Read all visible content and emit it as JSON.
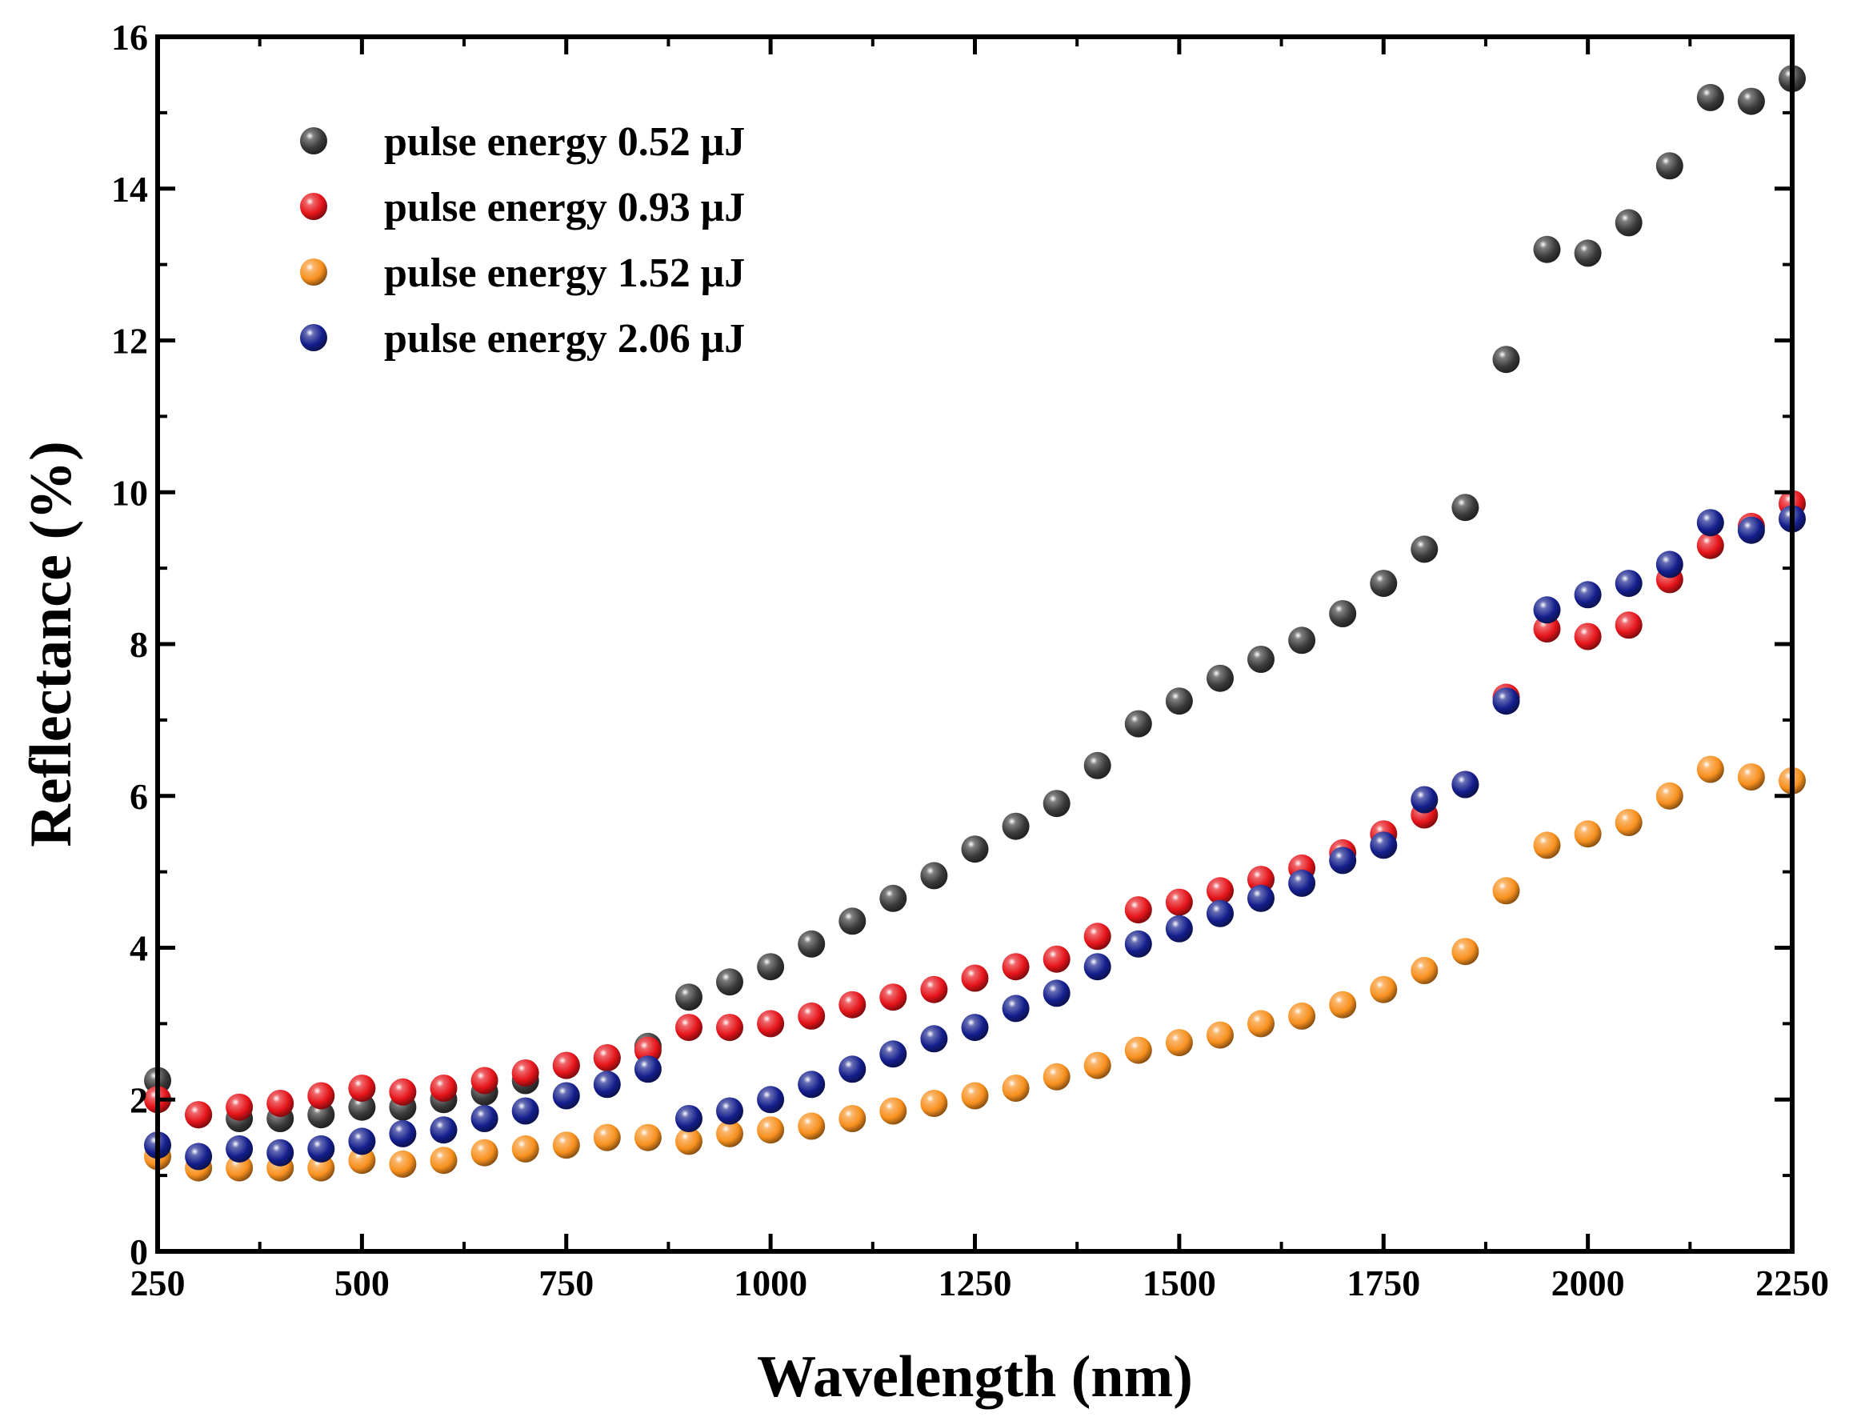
{
  "chart_data": {
    "type": "scatter",
    "title": "",
    "xlabel": "Wavelength (nm)",
    "ylabel": "Reflectance (%)",
    "xlim": [
      250,
      2250
    ],
    "ylim": [
      0,
      16
    ],
    "x_ticks": [
      250,
      500,
      750,
      1000,
      1250,
      1500,
      1750,
      2000,
      2250
    ],
    "y_ticks": [
      0,
      2,
      4,
      6,
      8,
      10,
      12,
      14,
      16
    ],
    "x_tick_labels": [
      "250",
      "500",
      "750",
      "1000",
      "1250",
      "1500",
      "1750",
      "2000",
      "2250"
    ],
    "y_tick_labels": [
      "0",
      "2",
      "4",
      "6",
      "8",
      "10",
      "12",
      "14",
      "16"
    ],
    "grid": false,
    "legend_position": "top-left",
    "x": [
      250,
      300,
      350,
      400,
      450,
      500,
      550,
      600,
      650,
      700,
      750,
      800,
      850,
      900,
      950,
      1000,
      1050,
      1100,
      1150,
      1200,
      1250,
      1300,
      1350,
      1400,
      1450,
      1500,
      1550,
      1600,
      1650,
      1700,
      1750,
      1800,
      1850,
      1900,
      1950,
      2000,
      2050,
      2100,
      2150,
      2200,
      2250
    ],
    "series": [
      {
        "name": "pulse energy 0.52 μJ",
        "color": "#3a3a3a",
        "values": [
          2.25,
          1.8,
          1.75,
          1.75,
          1.8,
          1.9,
          1.9,
          2.0,
          2.1,
          2.25,
          2.45,
          2.55,
          2.7,
          3.35,
          3.55,
          3.75,
          4.05,
          4.35,
          4.65,
          4.95,
          5.3,
          5.6,
          5.9,
          6.4,
          6.95,
          7.25,
          7.55,
          7.8,
          8.05,
          8.4,
          8.8,
          9.25,
          9.8,
          11.75,
          13.2,
          13.15,
          13.55,
          14.3,
          15.2,
          15.15,
          15.45
        ]
      },
      {
        "name": "pulse energy 0.93 μJ",
        "color": "#e5141a",
        "values": [
          2.0,
          1.8,
          1.9,
          1.95,
          2.05,
          2.15,
          2.1,
          2.15,
          2.25,
          2.35,
          2.45,
          2.55,
          2.65,
          2.95,
          2.95,
          3.0,
          3.1,
          3.25,
          3.35,
          3.45,
          3.6,
          3.75,
          3.85,
          4.15,
          4.5,
          4.6,
          4.75,
          4.9,
          5.05,
          5.25,
          5.5,
          5.75,
          6.15,
          7.3,
          8.2,
          8.1,
          8.25,
          8.85,
          9.3,
          9.55,
          9.85
        ]
      },
      {
        "name": "pulse energy 1.52 μJ",
        "color": "#f7901e",
        "values": [
          1.25,
          1.1,
          1.1,
          1.1,
          1.1,
          1.2,
          1.15,
          1.2,
          1.3,
          1.35,
          1.4,
          1.5,
          1.5,
          1.45,
          1.55,
          1.6,
          1.65,
          1.75,
          1.85,
          1.95,
          2.05,
          2.15,
          2.3,
          2.45,
          2.65,
          2.75,
          2.85,
          3.0,
          3.1,
          3.25,
          3.45,
          3.7,
          3.95,
          4.75,
          5.35,
          5.5,
          5.65,
          6.0,
          6.35,
          6.25,
          6.2
        ]
      },
      {
        "name": "pulse energy 2.06 μJ",
        "color": "#141e8c",
        "values": [
          1.4,
          1.25,
          1.35,
          1.3,
          1.35,
          1.45,
          1.55,
          1.6,
          1.75,
          1.85,
          2.05,
          2.2,
          2.4,
          1.75,
          1.85,
          2.0,
          2.2,
          2.4,
          2.6,
          2.8,
          2.95,
          3.2,
          3.4,
          3.75,
          4.05,
          4.25,
          4.45,
          4.65,
          4.85,
          5.15,
          5.35,
          5.95,
          6.15,
          7.25,
          8.45,
          8.65,
          8.8,
          9.05,
          9.6,
          9.5,
          9.65
        ]
      }
    ]
  }
}
